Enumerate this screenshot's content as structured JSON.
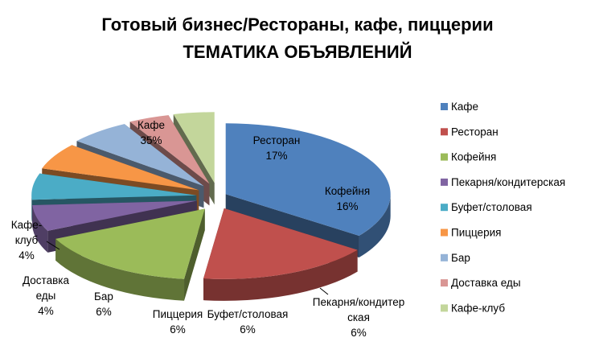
{
  "chart_data": {
    "type": "pie",
    "title": "Готовый бизнес/Рестораны, кафе, пиццерии",
    "subtitle": "ТЕМАТИКА ОБЪЯВЛЕНИЙ",
    "categories": [
      "Кафе",
      "Ресторан",
      "Кофейня",
      "Пекарня/кондитерская",
      "Буфет/столовая",
      "Пиццерия",
      "Бар",
      "Доставка еды",
      "Кафе-клуб"
    ],
    "values": [
      35,
      17,
      16,
      6,
      6,
      6,
      6,
      4,
      4
    ],
    "data_labels": [
      {
        "name": "Кафе",
        "value": "35%"
      },
      {
        "name": "Ресторан",
        "value": "17%"
      },
      {
        "name": "Кофейня",
        "value": "16%"
      },
      {
        "name": "Пекарня/кондитер",
        "name2": "ская",
        "value": "6%"
      },
      {
        "name": "Буфет/столовая",
        "value": "6%"
      },
      {
        "name": "Пиццерия",
        "value": "6%"
      },
      {
        "name": "Бар",
        "value": "6%"
      },
      {
        "name": "Доставка",
        "name2": "еды",
        "value": "4%"
      },
      {
        "name": "Кафе-",
        "name2": "клуб",
        "value": "4%"
      }
    ],
    "colors": [
      "#4f81bd",
      "#c0504d",
      "#9bbb59",
      "#8064a2",
      "#4bacc6",
      "#f79646",
      "#95b3d7",
      "#d99694",
      "#c3d69b"
    ],
    "legend_position": "right",
    "style": "3d-exploded"
  }
}
